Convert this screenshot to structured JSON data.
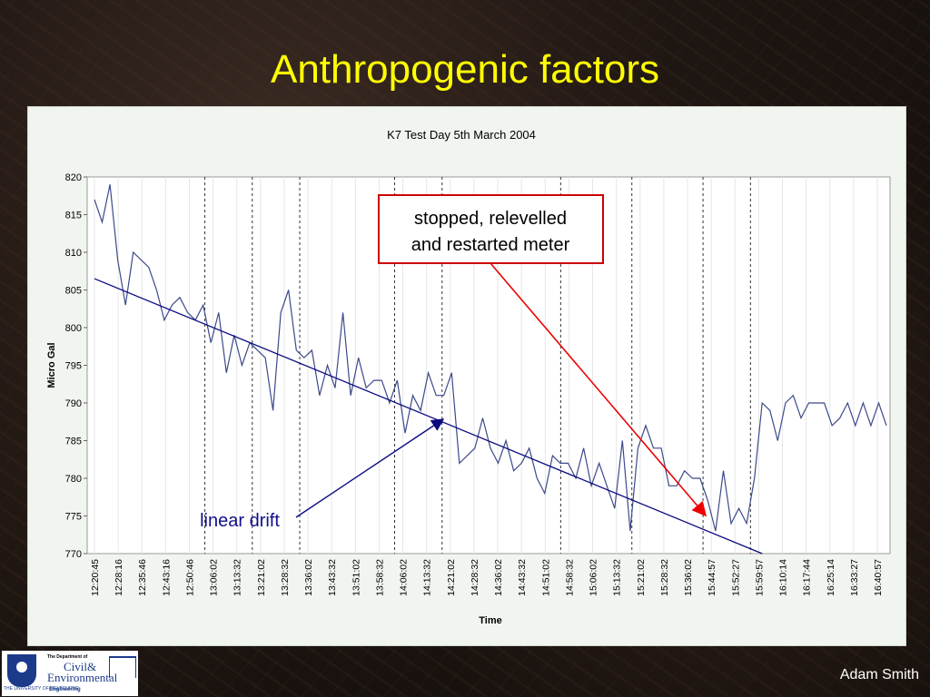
{
  "slide": {
    "title": "Anthropogenic factors",
    "author": "Adam Smith",
    "logo": {
      "university_text": "THE UNIVERSITY OF MELBOURNE",
      "dept_label": "The Department of",
      "dept_name_1": "Civil&",
      "dept_name_2": "Environmental",
      "dept_name_3": "Engineering"
    }
  },
  "colors": {
    "title": "#ffff00",
    "series": "#3b4a8a",
    "drift": "#0a0a80",
    "annotation_box": "#cc0000",
    "annotation_arrow": "#ee0000",
    "drift_label": "#10108a"
  },
  "chart_data": {
    "type": "line",
    "title": "K7 Test Day 5th March 2004",
    "xlabel": "Time",
    "ylabel": "Micro Gal",
    "ylim": [
      770,
      820
    ],
    "yticks": [
      770,
      775,
      780,
      785,
      790,
      795,
      800,
      805,
      810,
      815,
      820
    ],
    "tick_labels": [
      "12:20:45",
      "12:28:16",
      "12:35:46",
      "12:43:16",
      "12:50:46",
      "13:06:02",
      "13:13:32",
      "13:21:02",
      "13:28:32",
      "13:36:02",
      "13:43:32",
      "13:51:02",
      "13:58:32",
      "14:06:02",
      "14:13:32",
      "14:21:02",
      "14:28:32",
      "14:36:02",
      "14:43:32",
      "14:51:02",
      "14:58:32",
      "15:06:02",
      "15:13:32",
      "15:21:02",
      "15:28:32",
      "15:36:02",
      "15:44:57",
      "15:52:27",
      "15:59:57",
      "16:10:14",
      "16:17:44",
      "16:25:14",
      "16:33:27",
      "16:40:57"
    ],
    "dashed_after_ticks": [
      5,
      7,
      9,
      13,
      15,
      20,
      23,
      26,
      28
    ],
    "series": [
      {
        "values": [
          817,
          814,
          819,
          809,
          803,
          810,
          809,
          808,
          805,
          801,
          803,
          804,
          802,
          801,
          803,
          798,
          802,
          794,
          799,
          795,
          798,
          797,
          796,
          789,
          802,
          805,
          797,
          796,
          797,
          791,
          795,
          792,
          802,
          791,
          796,
          792,
          793,
          793,
          790,
          793,
          786,
          791,
          789,
          794,
          791,
          791,
          794,
          782,
          783,
          784,
          788,
          784,
          782,
          785,
          781,
          782,
          784,
          780,
          778,
          783,
          782,
          782,
          780,
          784,
          779,
          782,
          779,
          776,
          785,
          773,
          784,
          787,
          784,
          784,
          779,
          779,
          781,
          780,
          780,
          777,
          773,
          781,
          774,
          776,
          774,
          780,
          790,
          789,
          785,
          790,
          791,
          788,
          790,
          790,
          790,
          787,
          788,
          790,
          787,
          790,
          787,
          790,
          787
        ]
      },
      {
        "name": "linear drift",
        "start": [
          0,
          806.5
        ],
        "end": [
          86,
          770
        ]
      }
    ],
    "annotations": [
      {
        "text_lines": [
          "stopped, relevelled",
          "and restarted meter"
        ]
      },
      {
        "text": "linear drift"
      }
    ]
  }
}
